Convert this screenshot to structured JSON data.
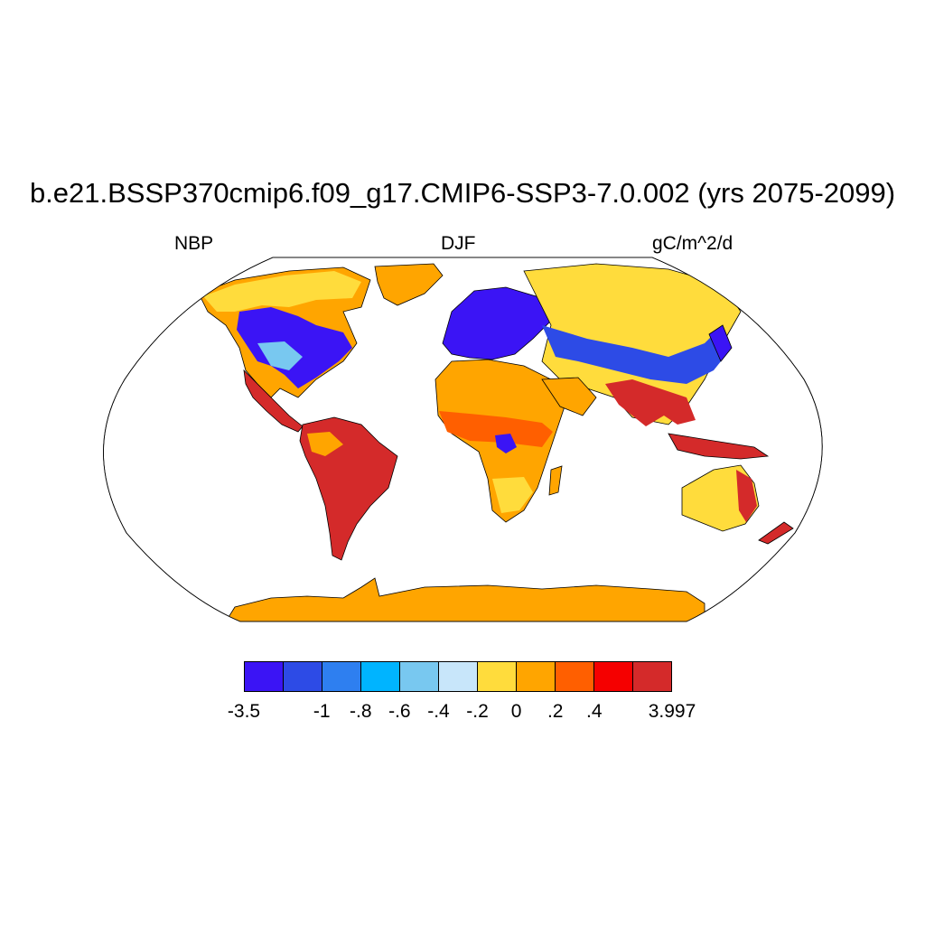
{
  "figure": {
    "title": "b.e21.BSSP370cmip6.f09_g17.CMIP6-SSP3-7.0.002 (yrs 2075-2099)",
    "left_label": "NBP",
    "center_label": "DJF",
    "right_label": "gC/m^2/d"
  },
  "map": {
    "projection": "Robinson",
    "ocean_color": "#ffffff",
    "coastline_color": "#000000",
    "regions": [
      {
        "name": "Greenland",
        "class": "0 to .2",
        "color": "#ffa500"
      },
      {
        "name": "Canada and Alaska",
        "class": "0 to .2",
        "color": "#ffa500"
      },
      {
        "name": "Eastern North America",
        "class": "-3.5 to -1",
        "color": "#3b14f5"
      },
      {
        "name": "Central America",
        "class": ".4 to 3.997",
        "color": "#d42a2a"
      },
      {
        "name": "South America",
        "class": ".4 to 3.997",
        "color": "#d42a2a"
      },
      {
        "name": "Europe",
        "class": "-3.5 to -1",
        "color": "#3b14f5"
      },
      {
        "name": "Siberia",
        "class": "-.2 to 0",
        "color": "#ffdc3c"
      },
      {
        "name": "Central Asia",
        "class": "-1 to -.8",
        "color": "#2d4be6"
      },
      {
        "name": "Sahara",
        "class": "0 to .2",
        "color": "#ffa500"
      },
      {
        "name": "Sahel",
        "class": ".2 to .4",
        "color": "#ff5f00"
      },
      {
        "name": "Southern Africa",
        "class": "0 to .2",
        "color": "#ffa500"
      },
      {
        "name": "South and Southeast Asia",
        "class": ".4 to 3.997",
        "color": "#d42a2a"
      },
      {
        "name": "Australia",
        "class": "-.2 to 0",
        "color": "#ffdc3c"
      },
      {
        "name": "Antarctica",
        "class": "0 to .2",
        "color": "#ffa500"
      }
    ]
  },
  "colorbar": {
    "colors": [
      "#3b14f5",
      "#2d4be6",
      "#2e7ff0",
      "#00b4ff",
      "#78c8f0",
      "#c8e6fa",
      "#ffdc3c",
      "#ffa500",
      "#ff5f00",
      "#f50000",
      "#d42a2a"
    ],
    "labels": [
      "-3.5",
      "-1",
      "-.8",
      "-.6",
      "-.4",
      "-.2",
      "0",
      ".2",
      ".4",
      "3.997"
    ]
  }
}
